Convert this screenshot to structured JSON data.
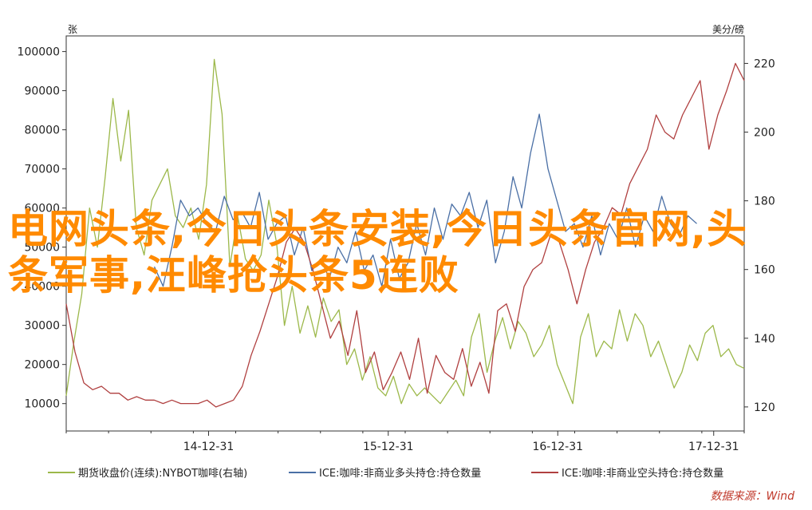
{
  "chart_data": {
    "type": "line",
    "left_unit": "张",
    "right_unit": "美分/磅",
    "x_ticks": [
      "14-12-31",
      "15-12-31",
      "16-12-31",
      "17-12-31"
    ],
    "y_left": {
      "ticks": [
        10000,
        20000,
        30000,
        40000,
        50000,
        60000,
        70000,
        80000,
        90000,
        100000
      ],
      "range": [
        3000,
        104000
      ]
    },
    "y_right": {
      "ticks": [
        120,
        140,
        160,
        180,
        200,
        220
      ],
      "range": [
        113,
        228
      ]
    },
    "series": [
      {
        "name": "期货收盘价(连续):NYBOT咖啡(右轴)",
        "color": "#9cb84a",
        "axis": "left",
        "values": [
          12000,
          26000,
          38000,
          60000,
          50000,
          68000,
          88000,
          72000,
          85000,
          55000,
          48000,
          62000,
          66000,
          70000,
          58000,
          55000,
          60000,
          52000,
          66000,
          98000,
          84000,
          45000,
          58000,
          47000,
          44000,
          48000,
          62000,
          51000,
          30000,
          40000,
          28000,
          35000,
          27000,
          37000,
          31000,
          34000,
          20000,
          24000,
          16000,
          22000,
          14000,
          12000,
          17000,
          10000,
          15000,
          12000,
          14000,
          12000,
          10000,
          13000,
          16000,
          12000,
          27000,
          33000,
          18000,
          26000,
          32000,
          24000,
          31000,
          28000,
          22000,
          25000,
          30000,
          20000,
          15000,
          10000,
          27000,
          33000,
          22000,
          26000,
          24000,
          34000,
          26000,
          33000,
          30000,
          22000,
          26000,
          20000,
          14000,
          18000,
          25000,
          21000,
          28000,
          30000,
          22000,
          24000,
          20000,
          19000
        ],
        "x_range": [
          0,
          1
        ]
      },
      {
        "name": "ICE:咖啡:非商业多头持仓:持仓数量",
        "color": "#4a6fa5",
        "axis": "left",
        "values": [
          45000,
          40000,
          50000,
          62000,
          58000,
          60000,
          56000,
          54000,
          63000,
          57000,
          59000,
          55000,
          64000,
          52000,
          56000,
          58000,
          48000,
          55000,
          44000,
          47000,
          42000,
          50000,
          46000,
          54000,
          44000,
          48000,
          40000,
          52000,
          42000,
          46000,
          56000,
          48000,
          60000,
          52000,
          61000,
          58000,
          64000,
          55000,
          62000,
          46000,
          54000,
          68000,
          60000,
          74000,
          84000,
          70000,
          62000,
          54000,
          56000,
          50000,
          58000,
          48000,
          56000,
          52000,
          60000,
          50000,
          58000,
          54000,
          63000,
          56000,
          53000,
          58000,
          56000
        ],
        "x_range": [
          0.13,
          0.93
        ]
      },
      {
        "name": "ICE:咖啡:非商业空头持仓:持仓数量",
        "color": "#b04040",
        "axis": "right",
        "values": [
          150,
          136,
          127,
          125,
          126,
          124,
          124,
          122,
          123,
          122,
          122,
          121,
          122,
          121,
          121,
          121,
          122,
          120,
          121,
          122,
          126,
          135,
          142,
          150,
          158,
          168,
          172,
          168,
          160,
          150,
          140,
          145,
          135,
          148,
          130,
          136,
          125,
          130,
          136,
          128,
          140,
          124,
          135,
          130,
          128,
          137,
          126,
          133,
          124,
          148,
          150,
          142,
          155,
          160,
          162,
          170,
          168,
          160,
          150,
          160,
          168,
          172,
          178,
          176,
          185,
          190,
          195,
          205,
          200,
          198,
          205,
          210,
          215,
          195,
          205,
          212,
          220,
          215
        ],
        "x_range": [
          0.0,
          1.0
        ]
      }
    ]
  },
  "overlay_title": "电网头条,今日头条安装,今日头条官网,头条军事,汪峰抢头条5连败",
  "source": "数据来源：Wind"
}
